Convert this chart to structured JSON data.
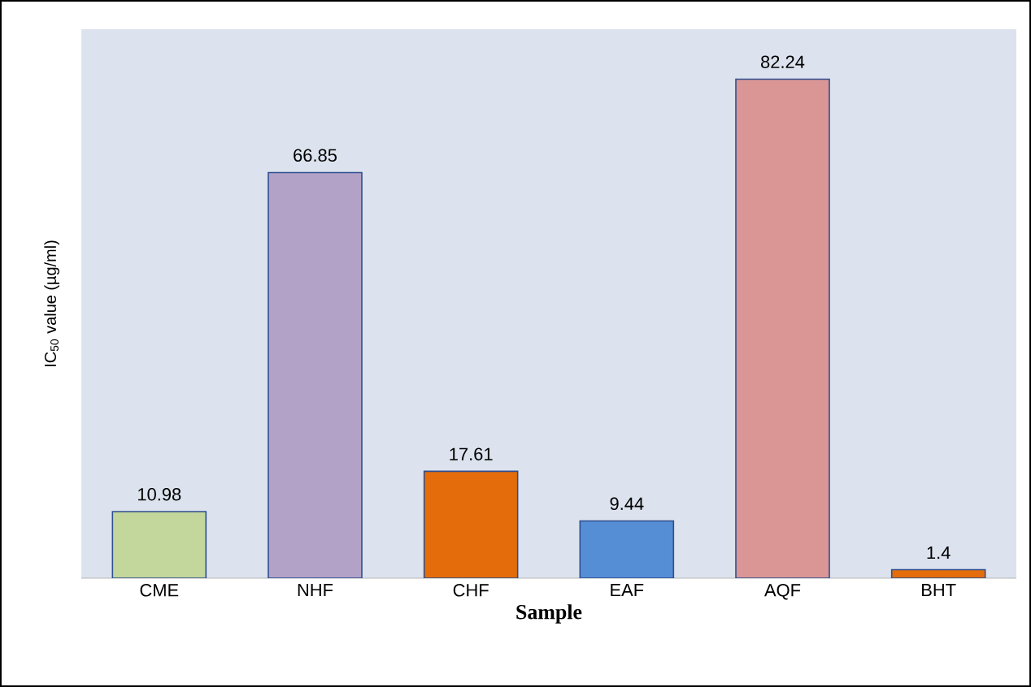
{
  "chart_data": {
    "type": "bar",
    "categories": [
      "CME",
      "NHF",
      "CHF",
      "EAF",
      "AQF",
      "BHT"
    ],
    "values": [
      10.98,
      66.85,
      17.61,
      9.44,
      82.24,
      1.4
    ],
    "colors": [
      "#c3d69b",
      "#b3a2c7",
      "#e46c0a",
      "#558ed5",
      "#d99694",
      "#e46c0a"
    ],
    "data_labels": true,
    "xlabel": "Sample",
    "ylabel": "IC$_{50}$ value (µg/ml)"
  }
}
